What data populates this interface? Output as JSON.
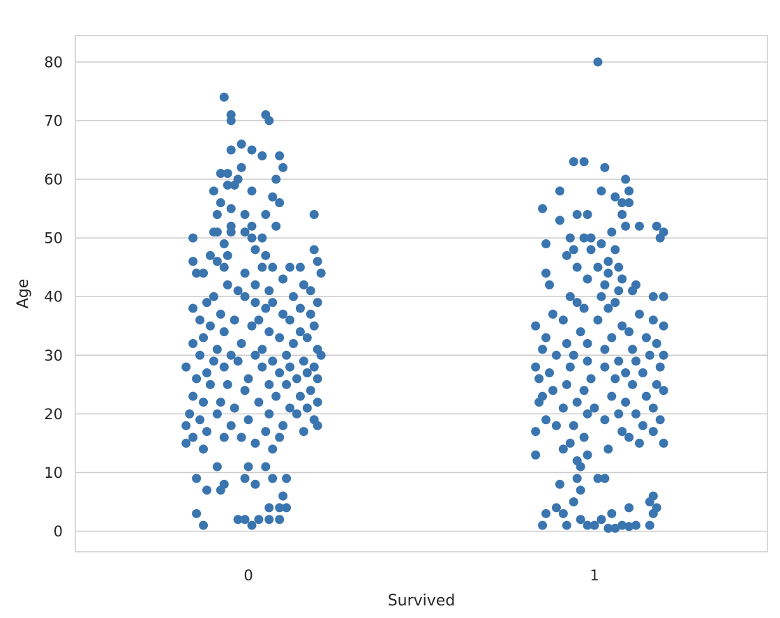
{
  "chart_data": {
    "type": "scatter",
    "subtype": "strip",
    "title": "",
    "xlabel": "Survived",
    "ylabel": "Age",
    "categories": [
      "0",
      "1"
    ],
    "ylim": [
      -3.5,
      84.5
    ],
    "yticks": [
      0,
      10,
      20,
      30,
      40,
      50,
      60,
      70,
      80
    ],
    "grid": "horizontal",
    "legend": "none",
    "point_color": "#3a75af",
    "series": [
      {
        "category": "0",
        "points": [
          [
            -0.07,
            74
          ],
          [
            -0.05,
            71
          ],
          [
            0.05,
            71
          ],
          [
            -0.05,
            70
          ],
          [
            0.06,
            70
          ],
          [
            -0.02,
            66
          ],
          [
            0.01,
            65
          ],
          [
            -0.05,
            65
          ],
          [
            0.04,
            64
          ],
          [
            0.09,
            64
          ],
          [
            -0.08,
            61
          ],
          [
            -0.06,
            61
          ],
          [
            -0.02,
            62
          ],
          [
            0.1,
            62
          ],
          [
            0.08,
            60
          ],
          [
            -0.03,
            60
          ],
          [
            -0.04,
            59
          ],
          [
            -0.06,
            59
          ],
          [
            0.01,
            58
          ],
          [
            -0.1,
            58
          ],
          [
            0.07,
            57
          ],
          [
            0.09,
            56
          ],
          [
            -0.08,
            56
          ],
          [
            -0.05,
            55
          ],
          [
            -0.09,
            54
          ],
          [
            0.05,
            54
          ],
          [
            -0.01,
            54
          ],
          [
            0.19,
            54
          ],
          [
            0.01,
            52
          ],
          [
            0.08,
            52
          ],
          [
            -0.05,
            52
          ],
          [
            -0.1,
            51
          ],
          [
            -0.09,
            51
          ],
          [
            -0.05,
            51
          ],
          [
            -0.01,
            51
          ],
          [
            0.01,
            50
          ],
          [
            0.04,
            50
          ],
          [
            -0.16,
            50
          ],
          [
            -0.07,
            49
          ],
          [
            0.02,
            48
          ],
          [
            0.19,
            48
          ],
          [
            -0.11,
            47
          ],
          [
            -0.06,
            47
          ],
          [
            0.05,
            47
          ],
          [
            -0.16,
            46
          ],
          [
            -0.09,
            46
          ],
          [
            0.2,
            46
          ],
          [
            -0.07,
            45
          ],
          [
            0.04,
            45
          ],
          [
            0.07,
            45
          ],
          [
            0.12,
            45
          ],
          [
            0.15,
            45
          ],
          [
            -0.13,
            44
          ],
          [
            -0.15,
            44
          ],
          [
            0.21,
            44
          ],
          [
            -0.01,
            44
          ],
          [
            0.1,
            43
          ],
          [
            -0.06,
            42
          ],
          [
            0.02,
            42
          ],
          [
            0.16,
            42
          ],
          [
            0.18,
            41
          ],
          [
            -0.03,
            41
          ],
          [
            0.06,
            41
          ],
          [
            -0.1,
            40
          ],
          [
            -0.01,
            40
          ],
          [
            0.13,
            40
          ],
          [
            0.2,
            39
          ],
          [
            -0.12,
            39
          ],
          [
            0.02,
            39
          ],
          [
            0.07,
            39
          ],
          [
            -0.16,
            38
          ],
          [
            0.15,
            38
          ],
          [
            0.05,
            38
          ],
          [
            -0.08,
            37
          ],
          [
            0.1,
            37
          ],
          [
            0.18,
            37
          ],
          [
            -0.04,
            36
          ],
          [
            -0.14,
            36
          ],
          [
            0.03,
            36
          ],
          [
            0.12,
            36
          ],
          [
            -0.11,
            35
          ],
          [
            0.19,
            35
          ],
          [
            0.01,
            35
          ],
          [
            -0.07,
            34
          ],
          [
            0.15,
            34
          ],
          [
            0.06,
            34
          ],
          [
            -0.13,
            33
          ],
          [
            0.09,
            33
          ],
          [
            0.17,
            33
          ],
          [
            -0.02,
            32
          ],
          [
            -0.16,
            32
          ],
          [
            0.13,
            32
          ],
          [
            0.04,
            31
          ],
          [
            -0.09,
            31
          ],
          [
            0.2,
            31
          ],
          [
            -0.05,
            30
          ],
          [
            0.11,
            30
          ],
          [
            0.21,
            30
          ],
          [
            -0.14,
            30
          ],
          [
            0.02,
            30
          ],
          [
            -0.1,
            29
          ],
          [
            0.07,
            29
          ],
          [
            0.16,
            29
          ],
          [
            -0.03,
            29
          ],
          [
            -0.18,
            28
          ],
          [
            0.12,
            28
          ],
          [
            0.19,
            28
          ],
          [
            -0.07,
            28
          ],
          [
            0.04,
            28
          ],
          [
            -0.12,
            27
          ],
          [
            0.09,
            27
          ],
          [
            0.17,
            27
          ],
          [
            0.0,
            26
          ],
          [
            -0.15,
            26
          ],
          [
            0.14,
            26
          ],
          [
            0.2,
            26
          ],
          [
            -0.06,
            25
          ],
          [
            0.06,
            25
          ],
          [
            -0.11,
            25
          ],
          [
            0.11,
            25
          ],
          [
            -0.01,
            24
          ],
          [
            0.18,
            24
          ],
          [
            -0.16,
            23
          ],
          [
            0.08,
            23
          ],
          [
            0.15,
            23
          ],
          [
            -0.08,
            22
          ],
          [
            0.03,
            22
          ],
          [
            -0.13,
            22
          ],
          [
            0.2,
            22
          ],
          [
            0.12,
            21
          ],
          [
            -0.04,
            21
          ],
          [
            0.17,
            21
          ],
          [
            -0.17,
            20
          ],
          [
            0.06,
            20
          ],
          [
            -0.09,
            20
          ],
          [
            0.14,
            20
          ],
          [
            0.0,
            19
          ],
          [
            -0.14,
            19
          ],
          [
            0.19,
            19
          ],
          [
            -0.05,
            18
          ],
          [
            0.1,
            18
          ],
          [
            -0.18,
            18
          ],
          [
            0.2,
            18
          ],
          [
            -0.12,
            17
          ],
          [
            0.05,
            17
          ],
          [
            0.16,
            17
          ],
          [
            -0.07,
            16
          ],
          [
            0.09,
            16
          ],
          [
            -0.16,
            16
          ],
          [
            -0.02,
            16
          ],
          [
            -0.18,
            15
          ],
          [
            0.02,
            15
          ],
          [
            -0.13,
            14
          ],
          [
            0.07,
            14
          ],
          [
            -0.09,
            11
          ],
          [
            0.0,
            11
          ],
          [
            0.05,
            11
          ],
          [
            -0.15,
            9
          ],
          [
            -0.01,
            9
          ],
          [
            0.07,
            9
          ],
          [
            0.11,
            9
          ],
          [
            0.02,
            8
          ],
          [
            -0.07,
            8
          ],
          [
            -0.12,
            7
          ],
          [
            -0.08,
            7
          ],
          [
            0.1,
            6
          ],
          [
            0.09,
            4
          ],
          [
            0.06,
            4
          ],
          [
            0.11,
            4
          ],
          [
            -0.15,
            3
          ],
          [
            -0.03,
            2
          ],
          [
            0.03,
            2
          ],
          [
            0.06,
            2
          ],
          [
            0.09,
            2
          ],
          [
            -0.01,
            2
          ],
          [
            -0.13,
            1
          ],
          [
            0.01,
            1
          ]
        ]
      },
      {
        "category": "1",
        "points": [
          [
            0.01,
            80
          ],
          [
            -0.06,
            63
          ],
          [
            -0.03,
            63
          ],
          [
            0.03,
            62
          ],
          [
            0.09,
            60
          ],
          [
            0.1,
            58
          ],
          [
            -0.1,
            58
          ],
          [
            0.02,
            58
          ],
          [
            0.06,
            57
          ],
          [
            0.08,
            56
          ],
          [
            0.1,
            56
          ],
          [
            -0.15,
            55
          ],
          [
            -0.05,
            54
          ],
          [
            -0.02,
            54
          ],
          [
            0.08,
            54
          ],
          [
            -0.1,
            53
          ],
          [
            0.09,
            52
          ],
          [
            0.13,
            52
          ],
          [
            0.18,
            52
          ],
          [
            0.2,
            51
          ],
          [
            0.05,
            51
          ],
          [
            -0.03,
            50
          ],
          [
            -0.07,
            50
          ],
          [
            -0.01,
            50
          ],
          [
            0.19,
            50
          ],
          [
            -0.14,
            49
          ],
          [
            0.02,
            49
          ],
          [
            -0.06,
            48
          ],
          [
            -0.01,
            48
          ],
          [
            0.06,
            48
          ],
          [
            -0.08,
            47
          ],
          [
            0.04,
            46
          ],
          [
            -0.05,
            45
          ],
          [
            0.01,
            45
          ],
          [
            0.07,
            45
          ],
          [
            0.04,
            44
          ],
          [
            -0.14,
            44
          ],
          [
            -0.02,
            43
          ],
          [
            0.08,
            43
          ],
          [
            0.12,
            42
          ],
          [
            -0.13,
            42
          ],
          [
            0.03,
            42
          ],
          [
            0.11,
            41
          ],
          [
            0.07,
            41
          ],
          [
            -0.07,
            40
          ],
          [
            0.02,
            40
          ],
          [
            0.2,
            40
          ],
          [
            0.17,
            40
          ],
          [
            -0.05,
            39
          ],
          [
            0.06,
            39
          ],
          [
            -0.03,
            38
          ],
          [
            0.04,
            38
          ],
          [
            -0.12,
            37
          ],
          [
            0.13,
            37
          ],
          [
            0.01,
            36
          ],
          [
            -0.09,
            36
          ],
          [
            0.17,
            36
          ],
          [
            -0.17,
            35
          ],
          [
            0.08,
            35
          ],
          [
            0.2,
            35
          ],
          [
            -0.04,
            34
          ],
          [
            0.1,
            34
          ],
          [
            -0.14,
            33
          ],
          [
            0.05,
            33
          ],
          [
            0.15,
            33
          ],
          [
            -0.08,
            32
          ],
          [
            0.18,
            32
          ],
          [
            -0.02,
            32
          ],
          [
            0.11,
            31
          ],
          [
            -0.15,
            31
          ],
          [
            0.03,
            31
          ],
          [
            -0.06,
            30
          ],
          [
            0.16,
            30
          ],
          [
            0.2,
            30
          ],
          [
            -0.11,
            30
          ],
          [
            0.07,
            29
          ],
          [
            -0.02,
            29
          ],
          [
            0.12,
            29
          ],
          [
            -0.17,
            28
          ],
          [
            0.03,
            28
          ],
          [
            0.19,
            28
          ],
          [
            -0.07,
            28
          ],
          [
            0.09,
            27
          ],
          [
            -0.13,
            27
          ],
          [
            0.14,
            27
          ],
          [
            -0.01,
            26
          ],
          [
            -0.16,
            26
          ],
          [
            0.06,
            26
          ],
          [
            0.18,
            25
          ],
          [
            -0.08,
            25
          ],
          [
            0.11,
            25
          ],
          [
            -0.03,
            24
          ],
          [
            0.2,
            24
          ],
          [
            -0.12,
            24
          ],
          [
            0.05,
            23
          ],
          [
            -0.15,
            23
          ],
          [
            0.15,
            23
          ],
          [
            -0.05,
            22
          ],
          [
            0.09,
            22
          ],
          [
            -0.16,
            22
          ],
          [
            0.0,
            21
          ],
          [
            0.17,
            21
          ],
          [
            -0.09,
            21
          ],
          [
            0.12,
            20
          ],
          [
            -0.02,
            20
          ],
          [
            0.07,
            20
          ],
          [
            -0.14,
            19
          ],
          [
            0.19,
            19
          ],
          [
            0.03,
            19
          ],
          [
            -0.06,
            18
          ],
          [
            0.14,
            18
          ],
          [
            -0.11,
            18
          ],
          [
            0.08,
            17
          ],
          [
            -0.17,
            17
          ],
          [
            0.17,
            17
          ],
          [
            -0.03,
            16
          ],
          [
            0.1,
            16
          ],
          [
            -0.07,
            15
          ],
          [
            0.2,
            15
          ],
          [
            0.13,
            15
          ],
          [
            0.04,
            14
          ],
          [
            -0.09,
            14
          ],
          [
            -0.02,
            13
          ],
          [
            -0.17,
            13
          ],
          [
            -0.05,
            12
          ],
          [
            -0.04,
            11
          ],
          [
            0.01,
            9
          ],
          [
            -0.05,
            9
          ],
          [
            0.03,
            9
          ],
          [
            -0.1,
            8
          ],
          [
            -0.04,
            7
          ],
          [
            0.17,
            6
          ],
          [
            -0.06,
            5
          ],
          [
            0.16,
            5
          ],
          [
            -0.11,
            4
          ],
          [
            0.1,
            4
          ],
          [
            0.18,
            4
          ],
          [
            0.05,
            3
          ],
          [
            -0.14,
            3
          ],
          [
            -0.09,
            3
          ],
          [
            0.17,
            3
          ],
          [
            -0.04,
            2
          ],
          [
            0.02,
            2
          ],
          [
            -0.15,
            1
          ],
          [
            -0.08,
            1
          ],
          [
            -0.02,
            1
          ],
          [
            0.12,
            1
          ],
          [
            0.16,
            1
          ],
          [
            0.08,
            1
          ],
          [
            0.04,
            0.5
          ],
          [
            0.06,
            0.5
          ],
          [
            0.1,
            0.8
          ],
          [
            0.0,
            1
          ]
        ]
      }
    ]
  }
}
